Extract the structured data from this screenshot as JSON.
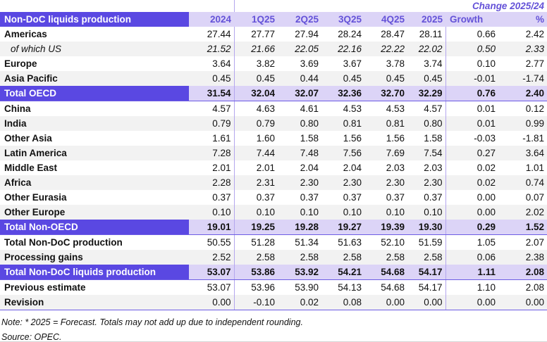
{
  "table": {
    "title": "Non-DoC liquids production",
    "change_header": "Change 2025/24",
    "columns": [
      "2024",
      "1Q25",
      "2Q25",
      "3Q25",
      "4Q25",
      "2025",
      "Growth",
      "%"
    ],
    "rows": [
      {
        "label": "Americas",
        "style": "normal",
        "stripe": false,
        "values": [
          "27.44",
          "27.77",
          "27.94",
          "28.24",
          "28.47",
          "28.11",
          "0.66",
          "2.42"
        ]
      },
      {
        "label": "of which US",
        "style": "sub",
        "stripe": true,
        "values": [
          "21.52",
          "21.66",
          "22.05",
          "22.16",
          "22.22",
          "22.02",
          "0.50",
          "2.33"
        ]
      },
      {
        "label": "Europe",
        "style": "normal",
        "stripe": false,
        "values": [
          "3.64",
          "3.82",
          "3.69",
          "3.67",
          "3.78",
          "3.74",
          "0.10",
          "2.77"
        ]
      },
      {
        "label": "Asia Pacific",
        "style": "normal",
        "stripe": true,
        "values": [
          "0.45",
          "0.45",
          "0.44",
          "0.45",
          "0.45",
          "0.45",
          "-0.01",
          "-1.74"
        ]
      },
      {
        "label": "Total OECD",
        "style": "total",
        "stripe": false,
        "values": [
          "31.54",
          "32.04",
          "32.07",
          "32.36",
          "32.70",
          "32.29",
          "0.76",
          "2.40"
        ]
      },
      {
        "label": "China",
        "style": "normal",
        "stripe": false,
        "values": [
          "4.57",
          "4.63",
          "4.61",
          "4.53",
          "4.53",
          "4.57",
          "0.01",
          "0.12"
        ]
      },
      {
        "label": "India",
        "style": "normal",
        "stripe": true,
        "values": [
          "0.79",
          "0.79",
          "0.80",
          "0.81",
          "0.81",
          "0.80",
          "0.01",
          "0.99"
        ]
      },
      {
        "label": "Other Asia",
        "style": "normal",
        "stripe": false,
        "values": [
          "1.61",
          "1.60",
          "1.58",
          "1.56",
          "1.56",
          "1.58",
          "-0.03",
          "-1.81"
        ]
      },
      {
        "label": "Latin America",
        "style": "normal",
        "stripe": true,
        "values": [
          "7.28",
          "7.44",
          "7.48",
          "7.56",
          "7.69",
          "7.54",
          "0.27",
          "3.64"
        ]
      },
      {
        "label": "Middle East",
        "style": "normal",
        "stripe": false,
        "values": [
          "2.01",
          "2.01",
          "2.04",
          "2.04",
          "2.03",
          "2.03",
          "0.02",
          "1.01"
        ]
      },
      {
        "label": "Africa",
        "style": "normal",
        "stripe": true,
        "values": [
          "2.28",
          "2.31",
          "2.30",
          "2.30",
          "2.30",
          "2.30",
          "0.02",
          "0.74"
        ]
      },
      {
        "label": "Other Eurasia",
        "style": "normal",
        "stripe": false,
        "values": [
          "0.37",
          "0.37",
          "0.37",
          "0.37",
          "0.37",
          "0.37",
          "0.00",
          "0.07"
        ]
      },
      {
        "label": "Other Europe",
        "style": "normal",
        "stripe": true,
        "values": [
          "0.10",
          "0.10",
          "0.10",
          "0.10",
          "0.10",
          "0.10",
          "0.00",
          "2.02"
        ]
      },
      {
        "label": "Total Non-OECD",
        "style": "total",
        "stripe": false,
        "values": [
          "19.01",
          "19.25",
          "19.28",
          "19.27",
          "19.39",
          "19.30",
          "0.29",
          "1.52"
        ]
      },
      {
        "label": "Total Non-DoC production",
        "style": "normal",
        "stripe": false,
        "values": [
          "50.55",
          "51.28",
          "51.34",
          "51.63",
          "52.10",
          "51.59",
          "1.05",
          "2.07"
        ]
      },
      {
        "label": "Processing gains",
        "style": "normal",
        "stripe": true,
        "values": [
          "2.52",
          "2.58",
          "2.58",
          "2.58",
          "2.58",
          "2.58",
          "0.06",
          "2.38"
        ]
      },
      {
        "label": "Total Non-DoC liquids production",
        "style": "total",
        "stripe": false,
        "values": [
          "53.07",
          "53.86",
          "53.92",
          "54.21",
          "54.68",
          "54.17",
          "1.11",
          "2.08"
        ]
      },
      {
        "label": "Previous estimate",
        "style": "normal",
        "stripe": false,
        "values": [
          "53.07",
          "53.96",
          "53.90",
          "54.13",
          "54.68",
          "54.17",
          "1.10",
          "2.08"
        ]
      },
      {
        "label": "Revision",
        "style": "normal",
        "stripe": true,
        "values": [
          "0.00",
          "-0.10",
          "0.02",
          "0.08",
          "0.00",
          "0.00",
          "0.00",
          "0.00"
        ]
      }
    ]
  },
  "footer": {
    "note": "Note: * 2025 = Forecast. Totals may not add up due to independent rounding.",
    "source": "Source: OPEC."
  },
  "colors": {
    "purple": "#5a48e2",
    "band": "#dcd4f7",
    "purple_text": "#6452d8",
    "stripe": "#f2f2f2",
    "vline": "#b4a6ee",
    "total_border": "#6c5ce4",
    "hairline": "#d5d5d5"
  }
}
